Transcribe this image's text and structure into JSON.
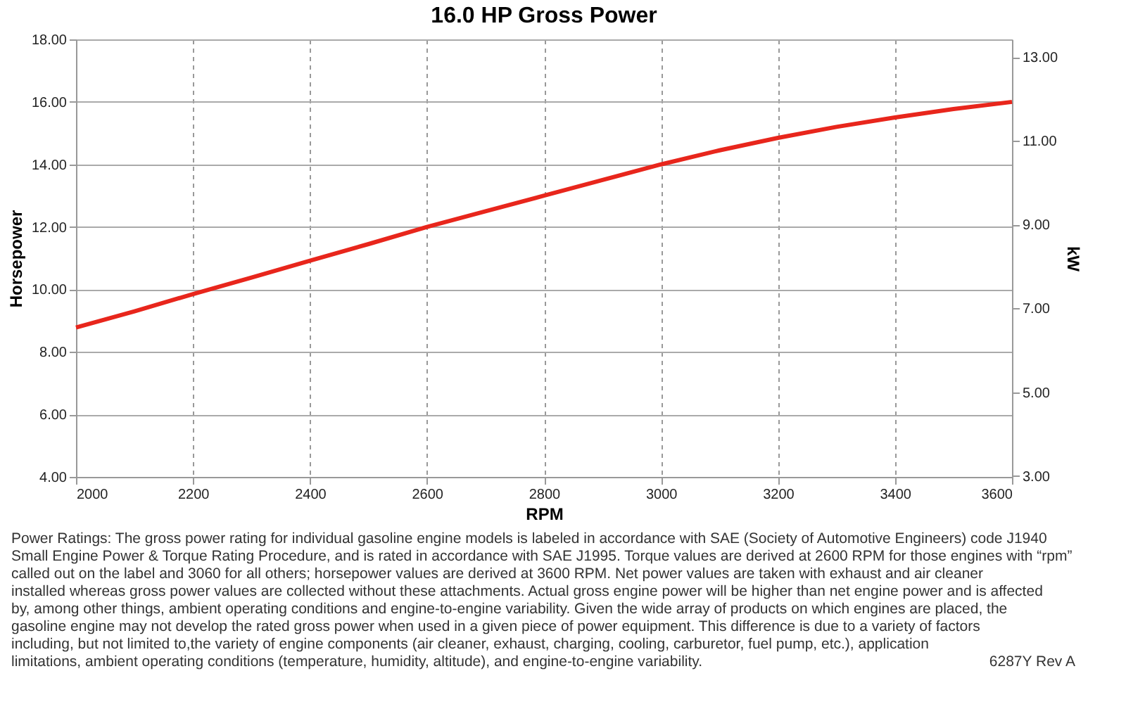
{
  "chart_data": {
    "type": "line",
    "title": "16.0 HP Gross Power",
    "xlabel": "RPM",
    "ylabel": "Horsepower",
    "y2label": "kW",
    "x": [
      2000,
      2100,
      2200,
      2300,
      2400,
      2500,
      2600,
      2700,
      2800,
      2900,
      3000,
      3100,
      3200,
      3300,
      3400,
      3500,
      3600
    ],
    "series": [
      {
        "color": "#e8261c",
        "values": [
          8.78,
          9.3,
          9.85,
          10.38,
          10.92,
          11.45,
          12.0,
          12.5,
          13.0,
          13.5,
          14.0,
          14.45,
          14.85,
          15.2,
          15.5,
          15.77,
          16.0
        ]
      }
    ],
    "xlim": [
      2000,
      3600
    ],
    "xticks": [
      2000,
      2200,
      2400,
      2600,
      2800,
      3000,
      3200,
      3400,
      3600
    ],
    "ylim": [
      4,
      18
    ],
    "yticks": [
      {
        "value": 4,
        "label": "4.00"
      },
      {
        "value": 6,
        "label": "6.00"
      },
      {
        "value": 8,
        "label": "8.00"
      },
      {
        "value": 10,
        "label": "10.00"
      },
      {
        "value": 12,
        "label": "12.00"
      },
      {
        "value": 14,
        "label": "14.00"
      },
      {
        "value": 16,
        "label": "16.00"
      },
      {
        "value": 18,
        "label": "18.00"
      }
    ],
    "y2lim": [
      2.98,
      13.42
    ],
    "y2ticks": [
      {
        "value": 3,
        "label": "3.00"
      },
      {
        "value": 5,
        "label": "5.00"
      },
      {
        "value": 7,
        "label": "7.00"
      },
      {
        "value": 9,
        "label": "9.00"
      },
      {
        "value": 11,
        "label": "11.00"
      },
      {
        "value": 13,
        "label": "13.00"
      }
    ],
    "grid": true,
    "marker": "none",
    "line_style": "solid",
    "annotations": [
      "Power Ratings: The gross power rating for individual gasoline engine models is labeled in accordance with SAE (Society of Automotive Engineers) code J1940 Small Engine Power & Torque Rating Procedure, and is rated in accordance with SAE J1995. Torque values are derived at 2600 RPM for those engines with “rpm” called out on the label and 3060 for all others; horsepower values are derived at 3600 RPM. Net power values are taken with exhaust and air cleaner installed whereas gross power values are collected without these attachments. Actual gross engine power will be higher than net engine power and is affected by, among other things, ambient operating conditions and engine-to-engine variability. Given the wide array of products on which engines are placed, the gasoline engine may not develop the rated gross power when used in a given piece of power equipment. This difference is due to a variety of factors including, but not limited to,the variety of engine components (air cleaner, exhaust, charging, cooling, carburetor, fuel pump, etc.), application limitations, ambient operating conditions (temperature, humidity, altitude), and engine-to-engine variability.",
      "6287Y Rev A"
    ]
  }
}
